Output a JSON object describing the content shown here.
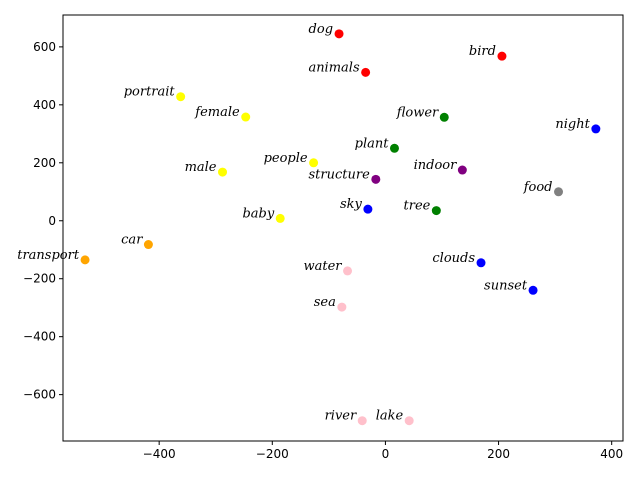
{
  "chart_data": {
    "type": "scatter",
    "title": "",
    "xlabel": "",
    "ylabel": "",
    "xlim": [
      -570,
      420
    ],
    "ylim": [
      -760,
      710
    ],
    "xticks": [
      -400,
      -200,
      0,
      200,
      400
    ],
    "yticks": [
      -600,
      -400,
      -200,
      0,
      200,
      400,
      600
    ],
    "xtick_labels": [
      "−400",
      "−200",
      "0",
      "200",
      "400"
    ],
    "ytick_labels": [
      "−600",
      "−400",
      "−200",
      "0",
      "200",
      "400",
      "600"
    ],
    "grid": false,
    "legend": "none",
    "points": [
      {
        "label": "dog",
        "x": -82,
        "y": 645,
        "color": "#ff0000"
      },
      {
        "label": "animals",
        "x": -35,
        "y": 512,
        "color": "#ff0000"
      },
      {
        "label": "bird",
        "x": 206,
        "y": 568,
        "color": "#ff0000"
      },
      {
        "label": "portrait",
        "x": -362,
        "y": 428,
        "color": "#ffff00"
      },
      {
        "label": "female",
        "x": -247,
        "y": 358,
        "color": "#ffff00"
      },
      {
        "label": "male",
        "x": -288,
        "y": 168,
        "color": "#ffff00"
      },
      {
        "label": "people",
        "x": -127,
        "y": 200,
        "color": "#ffff00"
      },
      {
        "label": "baby",
        "x": -186,
        "y": 8,
        "color": "#ffff00"
      },
      {
        "label": "flower",
        "x": 104,
        "y": 357,
        "color": "#008000"
      },
      {
        "label": "plant",
        "x": 16,
        "y": 250,
        "color": "#008000"
      },
      {
        "label": "tree",
        "x": 90,
        "y": 35,
        "color": "#008000"
      },
      {
        "label": "structure",
        "x": -17,
        "y": 143,
        "color": "#800080"
      },
      {
        "label": "indoor",
        "x": 136,
        "y": 175,
        "color": "#800080"
      },
      {
        "label": "night",
        "x": 372,
        "y": 317,
        "color": "#0000ff"
      },
      {
        "label": "sky",
        "x": -31,
        "y": 40,
        "color": "#0000ff"
      },
      {
        "label": "clouds",
        "x": 169,
        "y": -145,
        "color": "#0000ff"
      },
      {
        "label": "sunset",
        "x": 261,
        "y": -240,
        "color": "#0000ff"
      },
      {
        "label": "food",
        "x": 306,
        "y": 100,
        "color": "#808080"
      },
      {
        "label": "transport",
        "x": -531,
        "y": -135,
        "color": "#ffa500"
      },
      {
        "label": "car",
        "x": -419,
        "y": -82,
        "color": "#ffa500"
      },
      {
        "label": "water",
        "x": -67,
        "y": -173,
        "color": "#ffc0cb"
      },
      {
        "label": "sea",
        "x": -77,
        "y": -298,
        "color": "#ffc0cb"
      },
      {
        "label": "river",
        "x": -41,
        "y": -690,
        "color": "#ffc0cb"
      },
      {
        "label": "lake",
        "x": 42,
        "y": -690,
        "color": "#ffc0cb"
      }
    ]
  }
}
